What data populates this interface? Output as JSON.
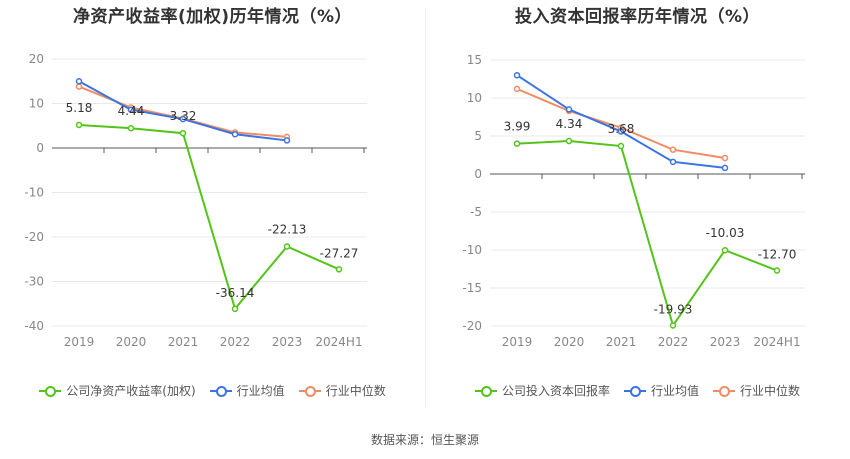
{
  "source": "数据来源：恒生聚源",
  "colors": {
    "company": "#52c41a",
    "avg": "#3b73e0",
    "median": "#f08c64",
    "grid": "#e8e8e8",
    "axis": "#555555",
    "tick": "#888888"
  },
  "chart_data": [
    {
      "type": "line",
      "title": "净资产收益率(加权)历年情况（%）",
      "categories": [
        "2019",
        "2020",
        "2021",
        "2022",
        "2023",
        "2024H1"
      ],
      "ylim": [
        -40,
        20
      ],
      "yticks": [
        20,
        10,
        0,
        -10,
        -20,
        -30,
        -40
      ],
      "grid": true,
      "legend_position": "bottom",
      "series": [
        {
          "name": "公司净资产收益率(加权)",
          "key": "company",
          "values": [
            5.18,
            4.44,
            3.32,
            -36.14,
            -22.13,
            -27.27
          ],
          "labels": [
            "5.18",
            "4.44",
            "3.32",
            "-36.14",
            "-22.13",
            "-27.27"
          ]
        },
        {
          "name": "行业均值",
          "key": "avg",
          "values": [
            15.0,
            8.6,
            6.5,
            3.1,
            1.7,
            null
          ]
        },
        {
          "name": "行业中位数",
          "key": "median",
          "values": [
            13.8,
            9.1,
            6.6,
            3.5,
            2.5,
            null
          ]
        }
      ]
    },
    {
      "type": "line",
      "title": "投入资本回报率历年情况（%）",
      "categories": [
        "2019",
        "2020",
        "2021",
        "2022",
        "2023",
        "2024H1"
      ],
      "ylim": [
        -20,
        15
      ],
      "yticks": [
        15,
        10,
        5,
        0,
        -5,
        -10,
        -15,
        -20
      ],
      "grid": true,
      "legend_position": "bottom",
      "series": [
        {
          "name": "公司投入资本回报率",
          "key": "company",
          "values": [
            3.99,
            4.34,
            3.68,
            -19.93,
            -10.03,
            -12.7
          ],
          "labels": [
            "3.99",
            "4.34",
            "3.68",
            "-19.93",
            "-10.03",
            "-12.70"
          ]
        },
        {
          "name": "行业均值",
          "key": "avg",
          "values": [
            13.0,
            8.5,
            5.6,
            1.6,
            0.8,
            null
          ]
        },
        {
          "name": "行业中位数",
          "key": "median",
          "values": [
            11.2,
            8.3,
            6.1,
            3.2,
            2.1,
            null
          ]
        }
      ]
    }
  ]
}
